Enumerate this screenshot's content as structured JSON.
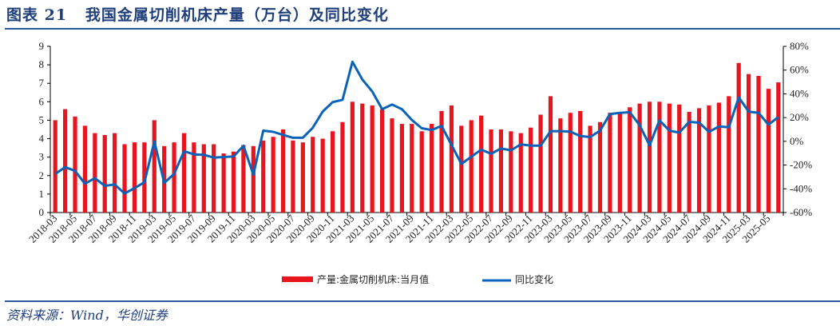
{
  "header": {
    "title": "图表 21   我国金属切削机床产量（万台）及同比变化"
  },
  "footer": {
    "source": "资料来源：Wind，华创证券"
  },
  "colors": {
    "bar": "#E8141E",
    "line": "#0A63B8",
    "title": "#1f3f7a"
  },
  "chart_data": {
    "type": "bar+line",
    "title": "我国金属切削机床产量（万台）及同比变化",
    "categories": [
      "2018-03",
      "2018-04",
      "2018-05",
      "2018-06",
      "2018-07",
      "2018-08",
      "2018-09",
      "2018-10",
      "2018-11",
      "2018-12",
      "2019-03",
      "2019-04",
      "2019-05",
      "2019-06",
      "2019-07",
      "2019-08",
      "2019-09",
      "2019-10",
      "2019-11",
      "2019-12",
      "2020-03",
      "2020-04",
      "2020-05",
      "2020-06",
      "2020-07",
      "2020-08",
      "2020-09",
      "2020-10",
      "2020-11",
      "2020-12",
      "2021-03",
      "2021-04",
      "2021-05",
      "2021-06",
      "2021-07",
      "2021-08",
      "2021-09",
      "2021-10",
      "2021-11",
      "2021-12",
      "2022-03",
      "2022-04",
      "2022-05",
      "2022-06",
      "2022-07",
      "2022-08",
      "2022-09",
      "2022-10",
      "2022-11",
      "2022-12",
      "2023-03",
      "2023-04",
      "2023-05",
      "2023-06",
      "2023-07",
      "2023-08",
      "2023-09",
      "2023-10",
      "2023-11",
      "2023-12",
      "2024-03",
      "2024-04",
      "2024-05",
      "2024-06",
      "2024-07",
      "2024-08",
      "2024-09",
      "2024-10",
      "2024-11",
      "2024-12",
      "2025-03",
      "2025-04",
      "2025-05",
      "2025-06"
    ],
    "series": [
      {
        "name": "产量:金属切削机床:当月值",
        "type": "bar",
        "axis": "left",
        "values": [
          5.0,
          5.6,
          5.2,
          4.7,
          4.3,
          4.2,
          4.3,
          3.7,
          3.8,
          3.8,
          5.0,
          3.6,
          3.8,
          4.3,
          3.8,
          3.7,
          3.7,
          3.2,
          3.3,
          3.65,
          3.6,
          3.9,
          4.1,
          4.5,
          3.9,
          3.8,
          4.1,
          4.0,
          4.4,
          4.9,
          6.0,
          5.9,
          5.8,
          5.6,
          5.1,
          4.8,
          4.8,
          4.4,
          4.8,
          5.5,
          5.8,
          4.7,
          5.0,
          5.25,
          4.5,
          4.5,
          4.4,
          4.3,
          4.6,
          5.3,
          6.3,
          5.1,
          5.4,
          5.5,
          4.7,
          4.9,
          5.4,
          5.4,
          5.7,
          5.9,
          6.0,
          6.0,
          5.9,
          5.85,
          5.45,
          5.65,
          5.8,
          5.95,
          6.3,
          8.1,
          7.5,
          7.4,
          6.7,
          7.05
        ]
      },
      {
        "name": "同比变化",
        "type": "line",
        "axis": "right",
        "unit": "%",
        "values": [
          -27.4,
          -21.8,
          -24.9,
          -35.7,
          -31,
          -37.5,
          -36.3,
          -44,
          -39.5,
          -34.5,
          0,
          -35,
          -27.4,
          -8.3,
          -11,
          -11.4,
          -13.7,
          -13.2,
          -12.8,
          -3.8,
          -28,
          9,
          8,
          5.4,
          3,
          3,
          11.4,
          25,
          33,
          35,
          67,
          52,
          42,
          27,
          31,
          27,
          18,
          11,
          9.5,
          13,
          -3,
          -19,
          -13,
          -7,
          -10.5,
          -6,
          -7.6,
          -2.5,
          -3.6,
          -3.6,
          8.6,
          8.6,
          8.2,
          4.5,
          3.6,
          9,
          23,
          24,
          24.5,
          13.6,
          -3.4,
          17.7,
          9,
          7.3,
          16.4,
          15.7,
          8,
          12.5,
          11.8,
          37,
          25,
          24,
          14,
          20.5
        ]
      }
    ],
    "y_left": {
      "min": 0,
      "max": 9,
      "ticks": [
        "0",
        "1",
        "2",
        "3",
        "4",
        "5",
        "6",
        "7",
        "8",
        "9"
      ]
    },
    "y_right": {
      "min": -60,
      "max": 80,
      "ticks": [
        "-60%",
        "-40%",
        "-20%",
        "0%",
        "20%",
        "40%",
        "60%",
        "80%"
      ]
    },
    "legend": {
      "position": "bottom-right",
      "items": [
        "产量:金属切削机床:当月值",
        "同比变化"
      ]
    },
    "grid": false
  }
}
